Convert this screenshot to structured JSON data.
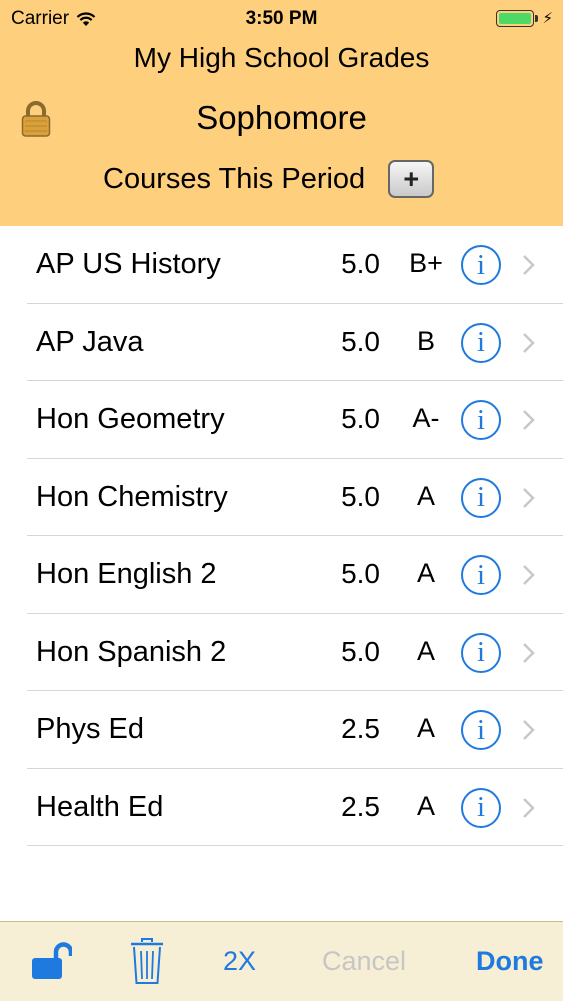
{
  "status_bar": {
    "carrier": "Carrier",
    "time": "3:50 PM",
    "battery_color": "#4cd964"
  },
  "header": {
    "app_title": "My High School Grades",
    "year": "Sophomore",
    "courses_label": "Courses This Period",
    "add_button_label": "+",
    "background_color": "#fecf7c"
  },
  "courses": [
    {
      "name": "AP US History",
      "credits": "5.0",
      "grade": "B+"
    },
    {
      "name": "AP Java",
      "credits": "5.0",
      "grade": "B"
    },
    {
      "name": "Hon Geometry",
      "credits": "5.0",
      "grade": "A-"
    },
    {
      "name": "Hon Chemistry",
      "credits": "5.0",
      "grade": "A"
    },
    {
      "name": "Hon English 2",
      "credits": "5.0",
      "grade": "A"
    },
    {
      "name": "Hon Spanish 2",
      "credits": "5.0",
      "grade": "A"
    },
    {
      "name": "Phys Ed",
      "credits": "2.5",
      "grade": "A"
    },
    {
      "name": "Health Ed",
      "credits": "2.5",
      "grade": "A"
    }
  ],
  "row_icons": {
    "info": "info-icon",
    "chevron": "chevron-right-icon",
    "info_glyph": "i"
  },
  "toolbar": {
    "multiplier_label": "2X",
    "cancel_label": "Cancel",
    "done_label": "Done",
    "accent_color": "#1f7ae0",
    "disabled_color": "#c6c6c6"
  }
}
